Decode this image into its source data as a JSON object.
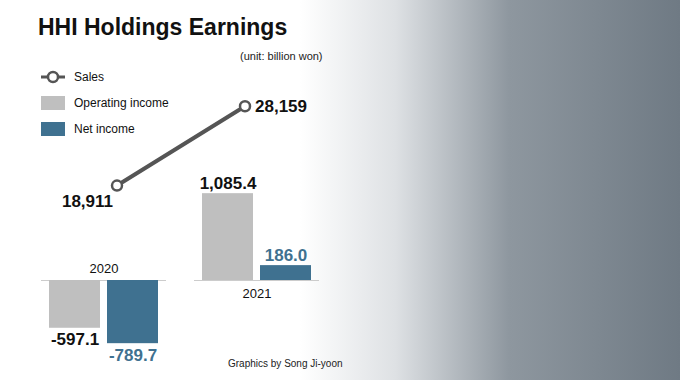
{
  "chart_data": {
    "type": "bar",
    "title": "HHI Holdings Earnings",
    "subtitle": "(unit: billion won)",
    "caption": "Graphics by Song Ji-yoon",
    "categories": [
      "2020",
      "2021"
    ],
    "series": [
      {
        "name": "Sales",
        "type": "line",
        "axis": "y2",
        "color": "#555555",
        "marker": "circle",
        "values": [
          18911,
          28159
        ],
        "value_labels": [
          "18,911",
          "28,159"
        ]
      },
      {
        "name": "Operating income",
        "type": "bar",
        "color": "#bfbfbf",
        "values": [
          -597.1,
          1085.4
        ],
        "value_labels": [
          "-597.1",
          "1,085.4"
        ]
      },
      {
        "name": "Net income",
        "type": "bar",
        "color": "#3f7190",
        "values": [
          -789.7,
          186.0
        ],
        "value_labels": [
          "-789.7",
          "186.0"
        ]
      }
    ],
    "ylim": [
      -900,
      1300
    ],
    "yticks": [
      0
    ],
    "y2lim": [
      16000,
      30000
    ],
    "data_labels": true,
    "tick_labels": false,
    "legend": "top-left"
  }
}
